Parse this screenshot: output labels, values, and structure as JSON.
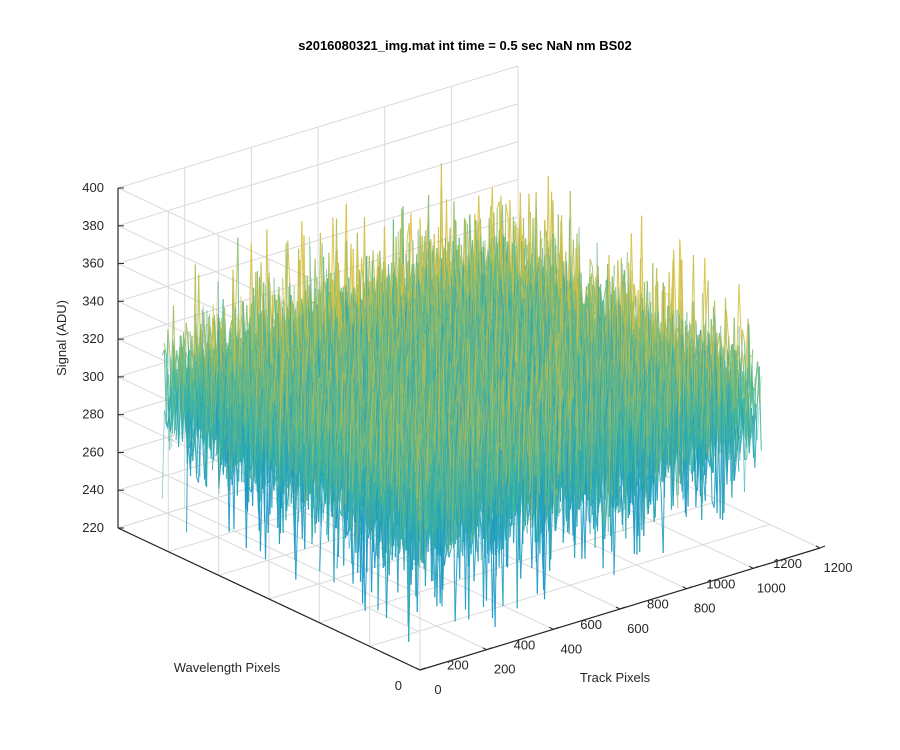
{
  "chart_data": {
    "type": "surface",
    "title": "s2016080321_img.mat int time = 0.5 sec  NaN nm BS02",
    "xlabel": "Track Pixels",
    "ylabel": "Wavelength Pixels",
    "zlabel": "Signal (ADU)",
    "xlim": [
      0,
      1200
    ],
    "ylim": [
      0,
      1200
    ],
    "zlim": [
      220,
      400
    ],
    "x_ticks": [
      "0",
      "200",
      "400",
      "600",
      "800",
      "1000",
      "1200"
    ],
    "y_ticks": [
      "0",
      "200",
      "400",
      "600",
      "800",
      "1000",
      "1200"
    ],
    "z_ticks": [
      "220",
      "240",
      "260",
      "280",
      "300",
      "320",
      "340",
      "360",
      "380",
      "400"
    ],
    "grid": true,
    "colormap": "parula",
    "surface": {
      "x_range": [
        0,
        1024
      ],
      "y_range": [
        0,
        1024
      ],
      "mean": 305,
      "typical_range": [
        270,
        340
      ],
      "min_approx": 230,
      "max_approx": 380
    },
    "colors": {
      "low": "#1996c8",
      "mid": "#3cb8a0",
      "high": "#d8c040"
    }
  }
}
